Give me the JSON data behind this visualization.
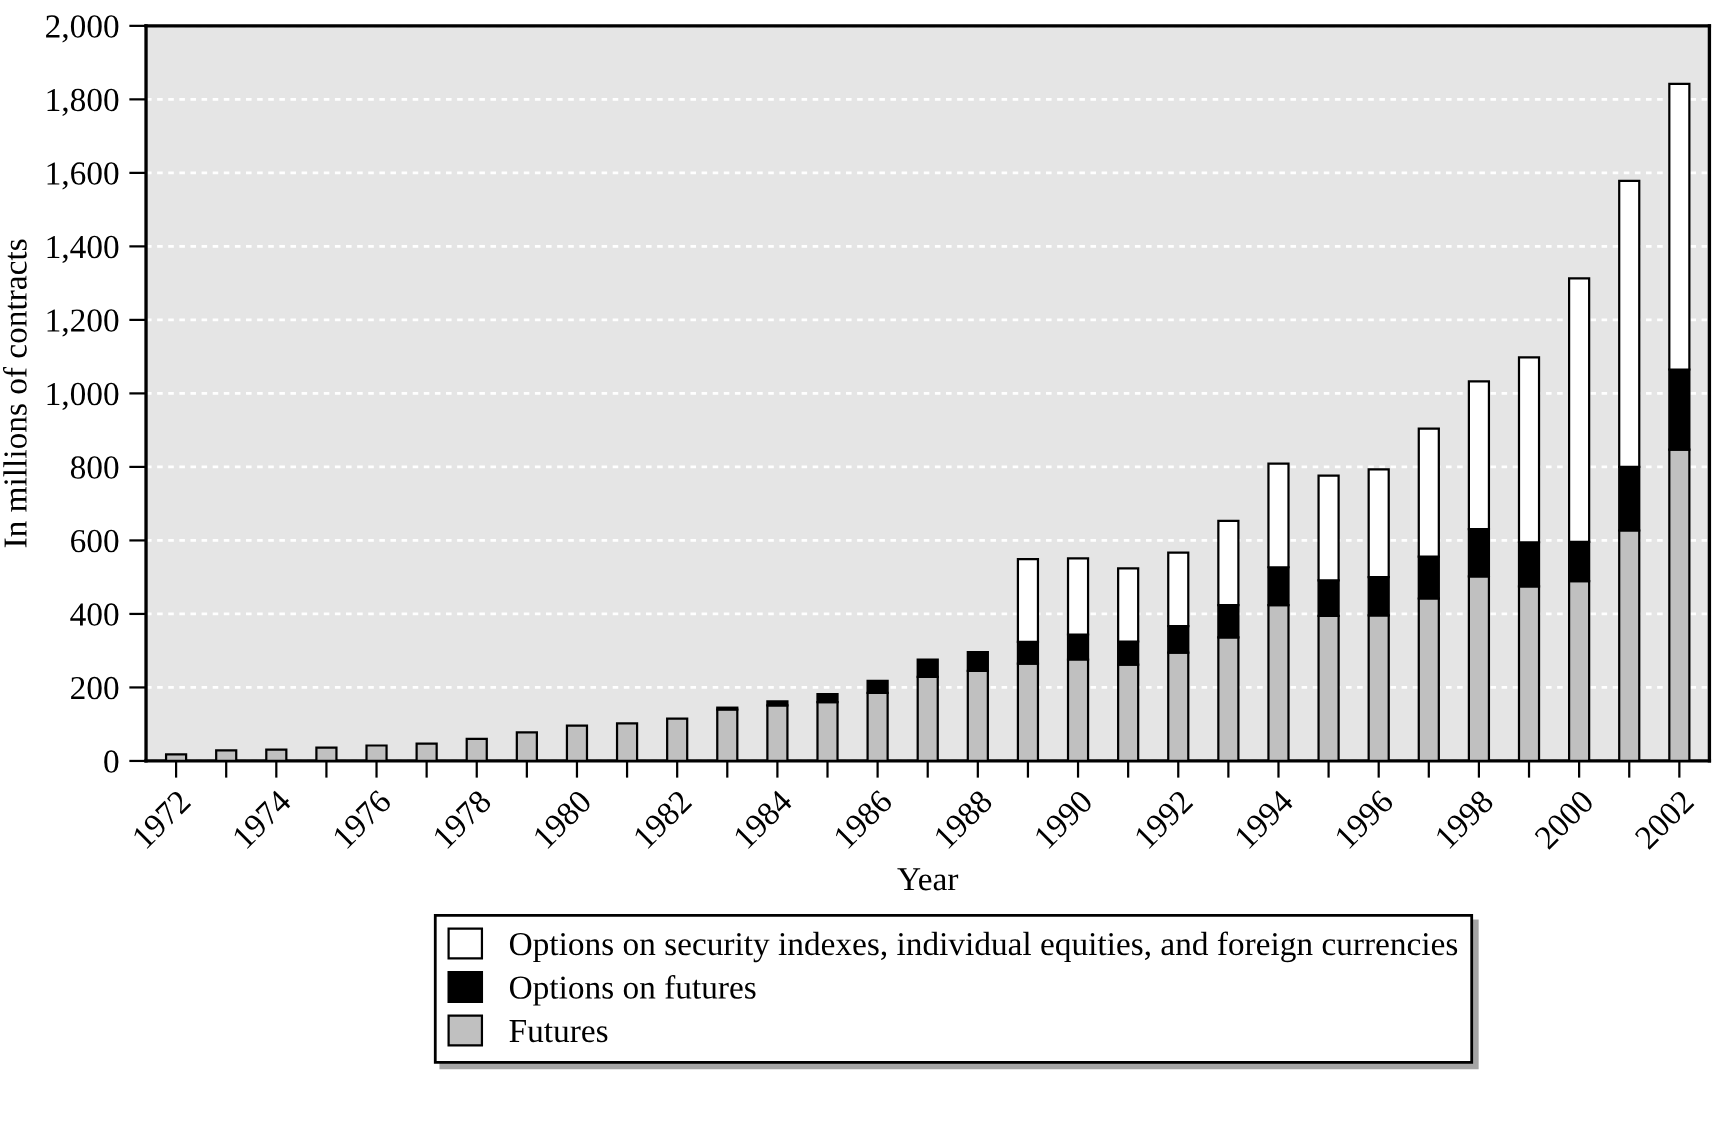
{
  "chart_data": {
    "type": "bar",
    "stacked": true,
    "xlabel": "Year",
    "ylabel": "In millions of contracts",
    "categories": [
      "1972",
      null,
      "1974",
      null,
      "1976",
      null,
      "1978",
      null,
      "1980",
      null,
      "1982",
      null,
      "1984",
      null,
      "1986",
      null,
      "1988",
      null,
      "1990",
      null,
      "1992",
      null,
      "1994",
      null,
      "1996",
      null,
      "1998",
      null,
      "2000",
      null,
      "2002"
    ],
    "series": [
      {
        "name": "Futures",
        "color": "#c0c0c0",
        "values": [
          18,
          29,
          31,
          36,
          42,
          47,
          60,
          78,
          96,
          102,
          115,
          140,
          151,
          160,
          185,
          229,
          245,
          265,
          276,
          262,
          295,
          336,
          424,
          395,
          396,
          442,
          502,
          475,
          489,
          627,
          847
        ]
      },
      {
        "name": "Options on futures",
        "color": "#000000",
        "values": [
          null,
          null,
          null,
          null,
          null,
          null,
          null,
          null,
          null,
          null,
          null,
          5,
          11,
          22,
          33,
          47,
          51,
          59,
          68,
          63,
          72,
          88,
          103,
          96,
          104,
          114,
          129,
          120,
          107,
          173,
          218
        ]
      },
      {
        "name": "Options on security indexes, individual equities, and foreign currencies",
        "color": "#ffffff",
        "values": [
          null,
          null,
          null,
          null,
          null,
          null,
          null,
          null,
          null,
          null,
          null,
          null,
          null,
          null,
          null,
          null,
          null,
          225,
          207,
          199,
          200,
          229,
          282,
          285,
          293,
          348,
          402,
          503,
          717,
          778,
          777
        ]
      }
    ],
    "ylim": [
      0,
      2000
    ],
    "yticks": [
      0,
      200,
      400,
      600,
      800,
      {
        "value": 1000,
        "label": "1,000"
      },
      {
        "value": 1200,
        "label": "1,200"
      },
      {
        "value": 1400,
        "label": "1,400"
      },
      {
        "value": 1600,
        "label": "1,600"
      },
      {
        "value": 1800,
        "label": "1,800"
      },
      {
        "value": 2000,
        "label": "2,000"
      }
    ],
    "grid": "y",
    "legend": "bottom"
  }
}
